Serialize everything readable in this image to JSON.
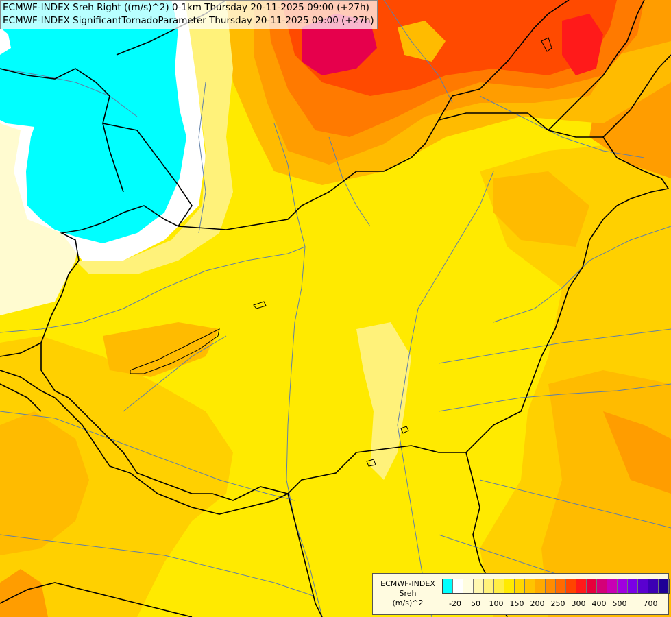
{
  "title": {
    "line1": "ECMWF-INDEX Sreh Right ((m/s)^2) 0-1km Thursday 20-11-2025 09:00 (+27h)",
    "line2": "ECMWF-INDEX SignificantTornadoParameter Thursday 20-11-2025 09:00 (+27h)"
  },
  "legend": {
    "model": "ECMWF-INDEX",
    "variable": "Sreh",
    "unit": "(m/s)^2",
    "ticks": [
      "-20",
      "50",
      "100",
      "150",
      "200",
      "250",
      "300",
      "400",
      "500",
      "700"
    ],
    "colors": [
      "#00ffff",
      "#ffffff",
      "#fffde0",
      "#fff8b0",
      "#fff27a",
      "#ffee44",
      "#ffea00",
      "#ffd700",
      "#ffc400",
      "#ffaa00",
      "#ff8c00",
      "#ff6a00",
      "#ff4400",
      "#ff1a1a",
      "#e6003c",
      "#d40078",
      "#c800b4",
      "#a000e0",
      "#7a00e6",
      "#5a00d0",
      "#3c00b4",
      "#1e0096"
    ]
  },
  "map": {
    "colors": {
      "cyan": "#00ffff",
      "white": "#ffffff",
      "pale": "#fffbd0",
      "lightyellow": "#fff27a",
      "yellow": "#ffea00",
      "gold": "#ffd000",
      "amber": "#ffbb00",
      "orange": "#ff9d00",
      "darkorange": "#ff7a00",
      "red": "#ff4a00",
      "crimson": "#e6004c",
      "border": "#000000",
      "river": "#5f7fa8"
    }
  }
}
